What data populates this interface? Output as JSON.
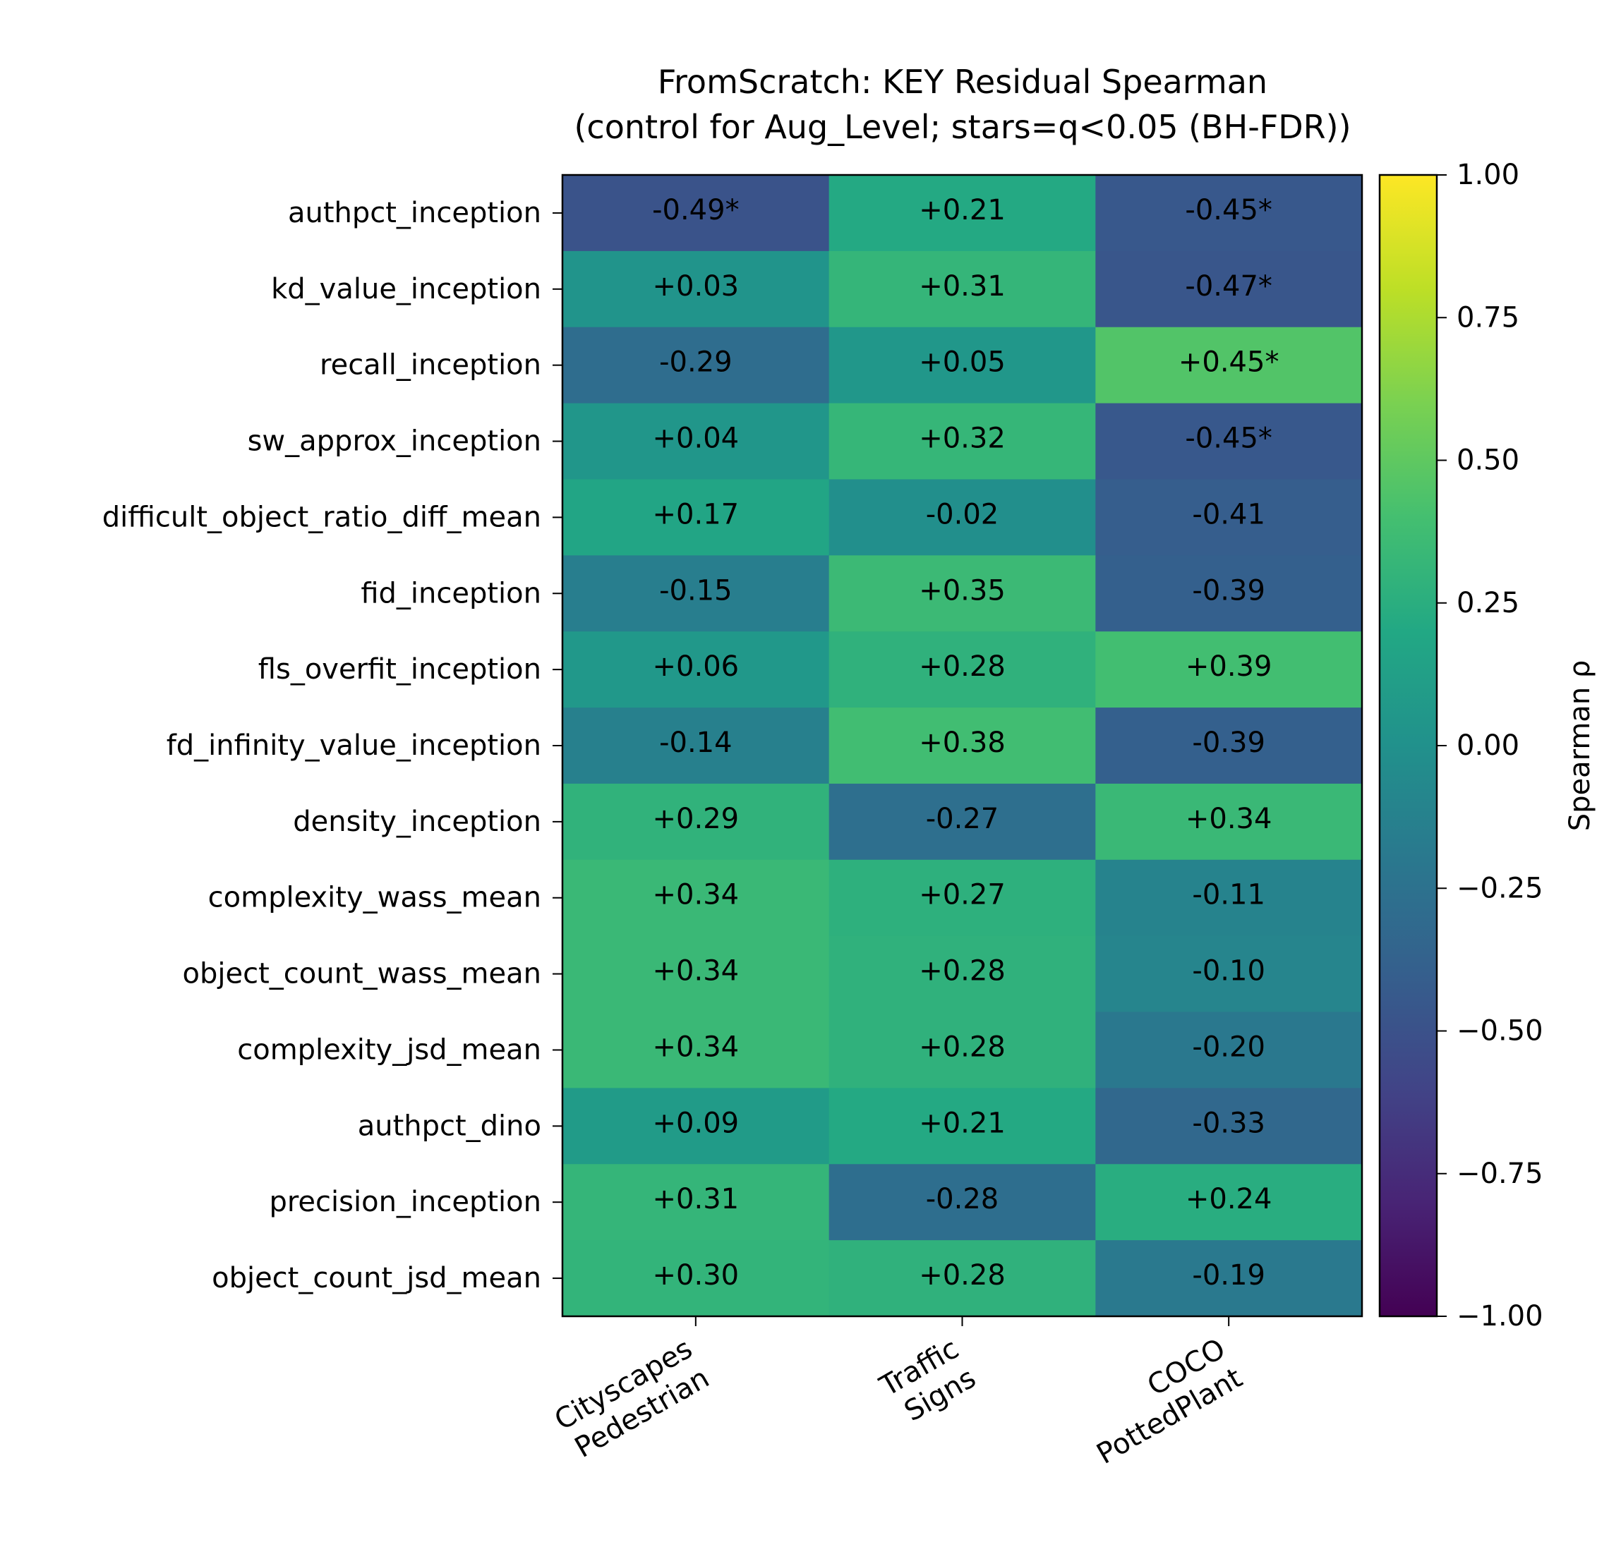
{
  "chart_data": {
    "type": "heatmap",
    "title": "FromScratch: KEY Residual Spearman",
    "subtitle": "(control for Aug_Level; stars=q<0.05 (BH-FDR))",
    "x_categories": [
      {
        "line1": "Cityscapes",
        "line2": "Pedestrian"
      },
      {
        "line1": "Traffic",
        "line2": "Signs"
      },
      {
        "line1": "COCO",
        "line2": "PottedPlant"
      }
    ],
    "y_categories": [
      "authpct_inception",
      "kd_value_inception",
      "recall_inception",
      "sw_approx_inception",
      "difficult_object_ratio_diff_mean",
      "fid_inception",
      "fls_overfit_inception",
      "fd_infinity_value_inception",
      "density_inception",
      "complexity_wass_mean",
      "object_count_wass_mean",
      "complexity_jsd_mean",
      "authpct_dino",
      "precision_inception",
      "object_count_jsd_mean"
    ],
    "values": [
      [
        -0.49,
        0.21,
        -0.45
      ],
      [
        0.03,
        0.31,
        -0.47
      ],
      [
        -0.29,
        0.05,
        0.45
      ],
      [
        0.04,
        0.32,
        -0.45
      ],
      [
        0.17,
        -0.02,
        -0.41
      ],
      [
        -0.15,
        0.35,
        -0.39
      ],
      [
        0.06,
        0.28,
        0.39
      ],
      [
        -0.14,
        0.38,
        -0.39
      ],
      [
        0.29,
        -0.27,
        0.34
      ],
      [
        0.34,
        0.27,
        -0.11
      ],
      [
        0.34,
        0.28,
        -0.1
      ],
      [
        0.34,
        0.28,
        -0.2
      ],
      [
        0.09,
        0.21,
        -0.33
      ],
      [
        0.31,
        -0.28,
        0.24
      ],
      [
        0.3,
        0.28,
        -0.19
      ]
    ],
    "cell_labels": [
      [
        "-0.49*",
        "+0.21",
        "-0.45*"
      ],
      [
        "+0.03",
        "+0.31",
        "-0.47*"
      ],
      [
        "-0.29",
        "+0.05",
        "+0.45*"
      ],
      [
        "+0.04",
        "+0.32",
        "-0.45*"
      ],
      [
        "+0.17",
        "-0.02",
        "-0.41"
      ],
      [
        "-0.15",
        "+0.35",
        "-0.39"
      ],
      [
        "+0.06",
        "+0.28",
        "+0.39"
      ],
      [
        "-0.14",
        "+0.38",
        "-0.39"
      ],
      [
        "+0.29",
        "-0.27",
        "+0.34"
      ],
      [
        "+0.34",
        "+0.27",
        "-0.11"
      ],
      [
        "+0.34",
        "+0.28",
        "-0.10"
      ],
      [
        "+0.34",
        "+0.28",
        "-0.20"
      ],
      [
        "+0.09",
        "+0.21",
        "-0.33"
      ],
      [
        "+0.31",
        "-0.28",
        "+0.24"
      ],
      [
        "+0.30",
        "+0.28",
        "-0.19"
      ]
    ],
    "colormap": "viridis",
    "vmin": -1.0,
    "vmax": 1.0,
    "colorbar": {
      "label": "Spearman ρ",
      "ticks": [
        1.0,
        0.75,
        0.5,
        0.25,
        0.0,
        -0.25,
        -0.5,
        -0.75,
        -1.0
      ],
      "tick_labels": [
        "1.00",
        "0.75",
        "0.50",
        "0.25",
        "0.00",
        "−0.25",
        "−0.50",
        "−0.75",
        "−1.00"
      ]
    }
  }
}
